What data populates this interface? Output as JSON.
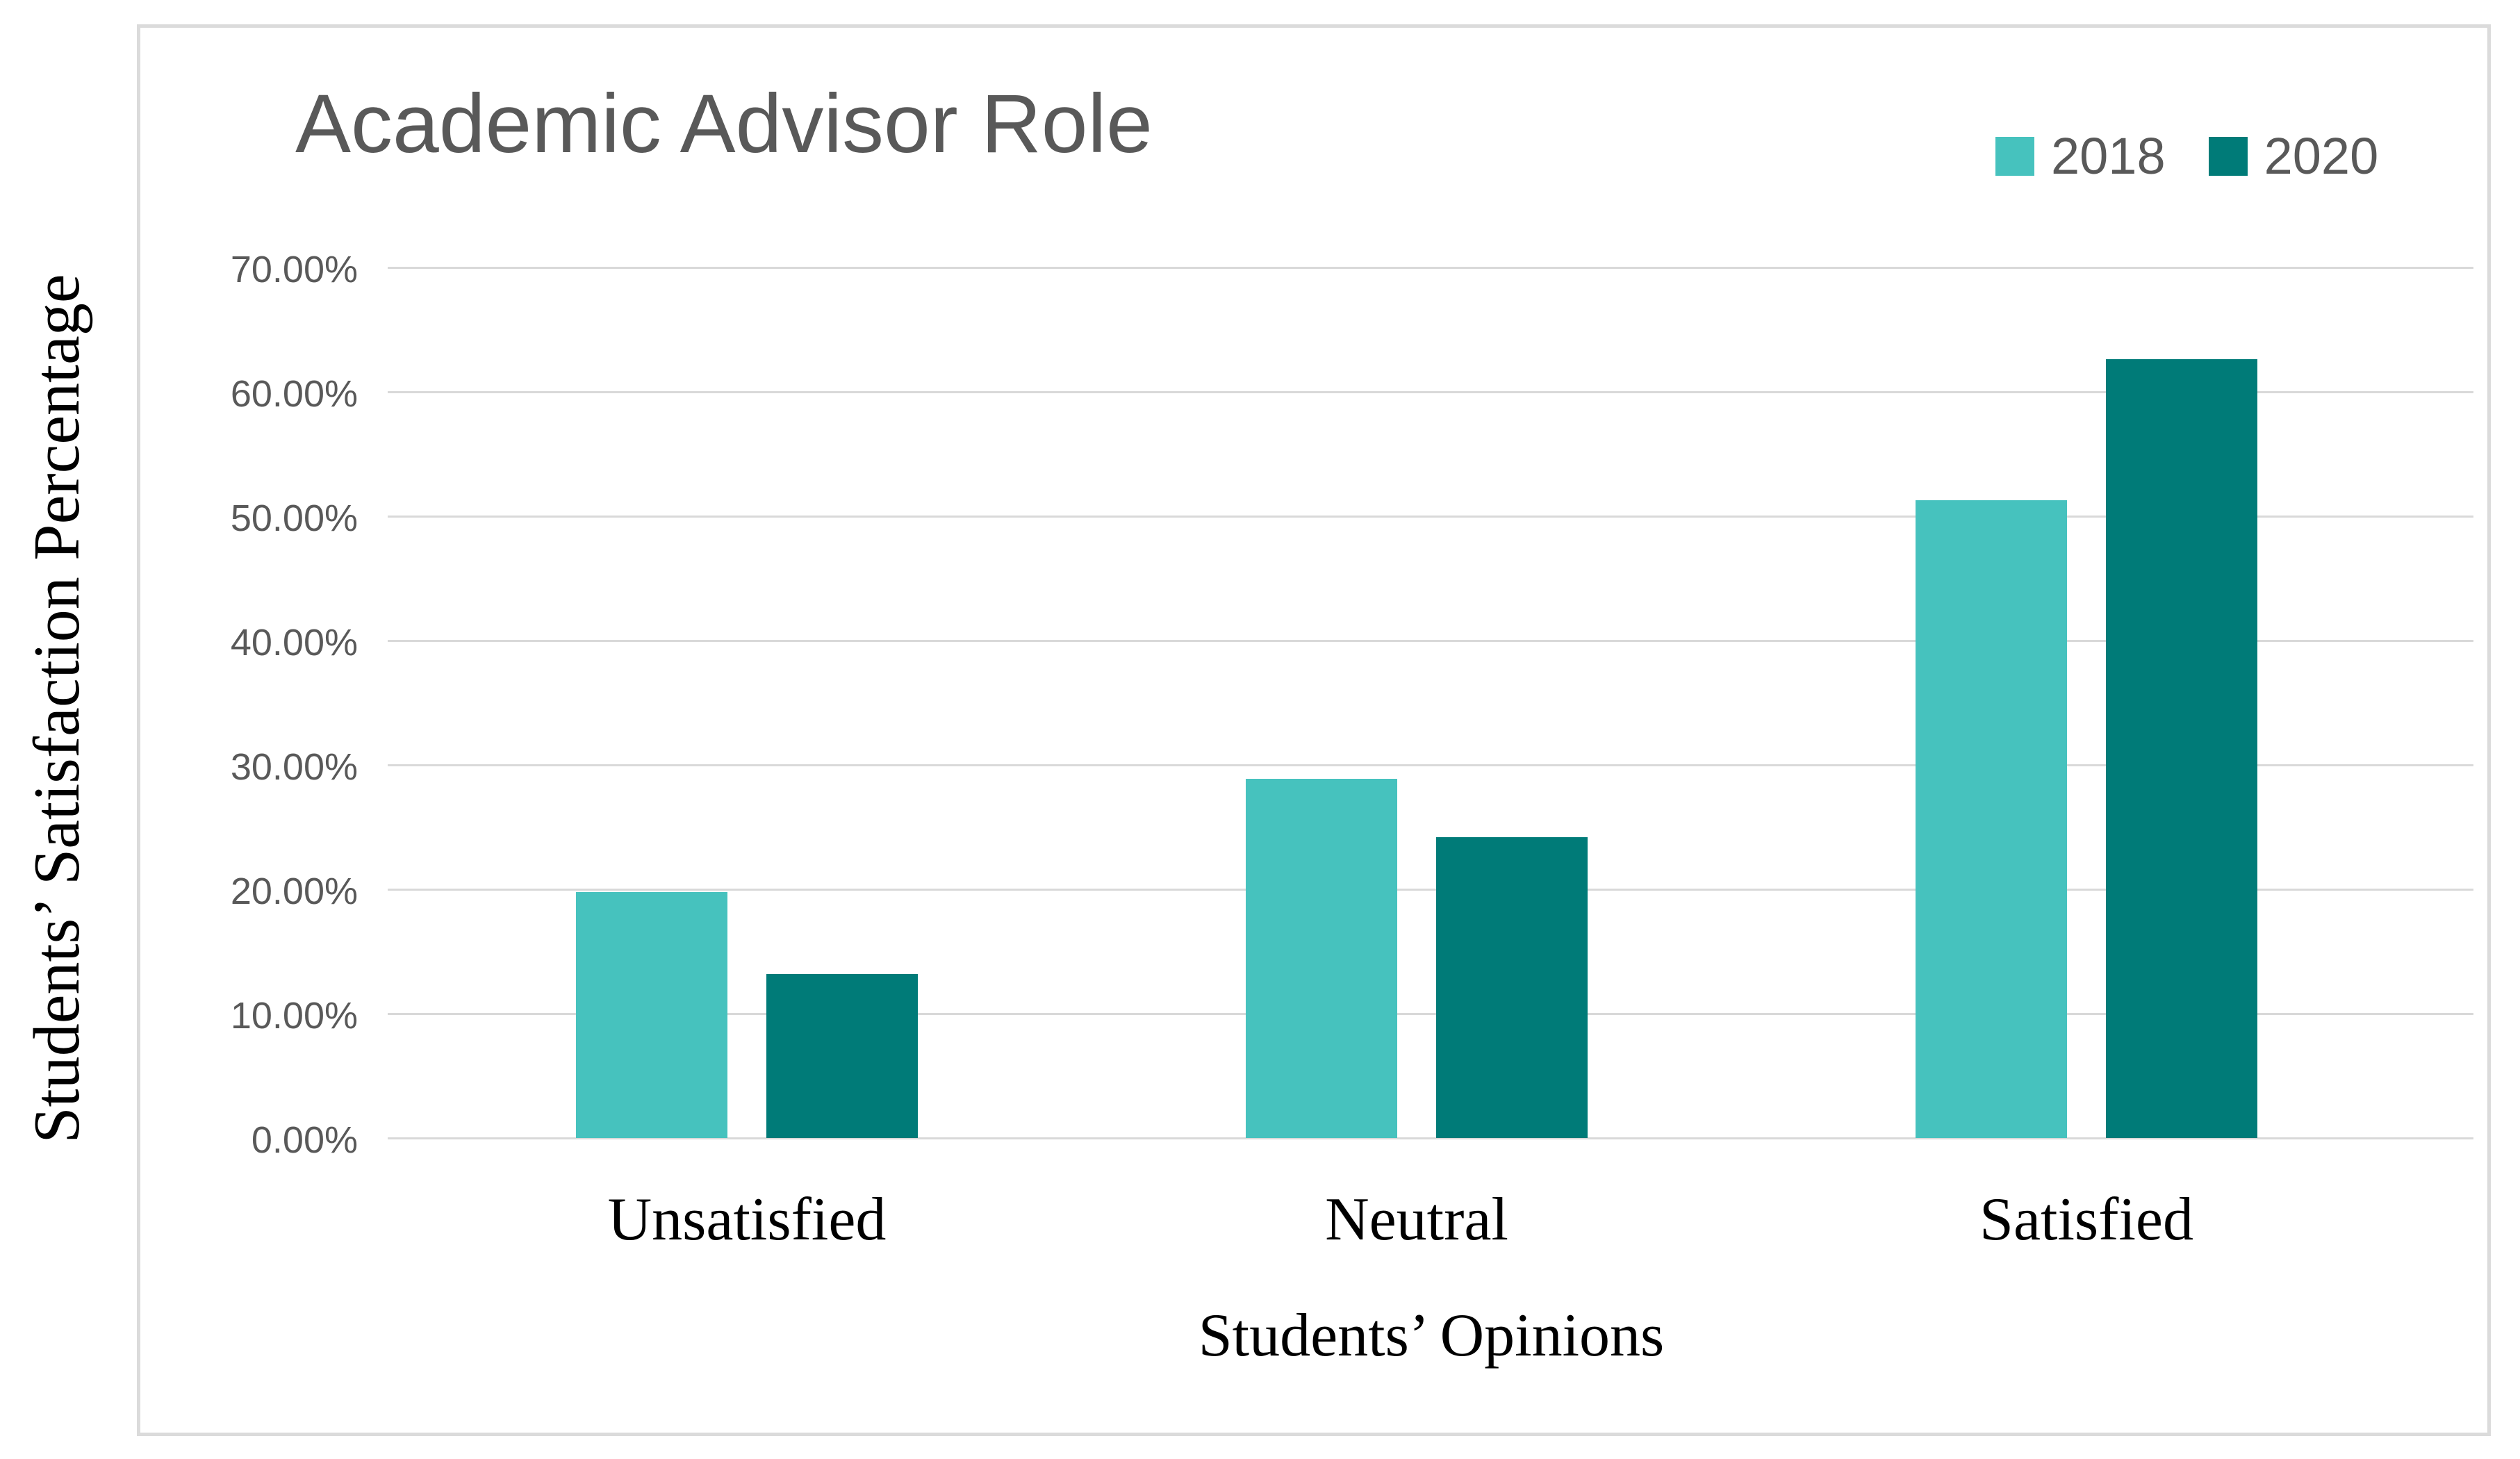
{
  "title": "Academic Advisor Role",
  "legend": [
    {
      "label": "2018",
      "color": "#46C2BE"
    },
    {
      "label": "2020",
      "color": "#007B78"
    }
  ],
  "y_axis": {
    "title": "Students’ Satisfaction Percentage",
    "tick_labels": [
      "0.00%",
      "10.00%",
      "20.00%",
      "30.00%",
      "40.00%",
      "50.00%",
      "60.00%",
      "70.00%"
    ]
  },
  "x_axis": {
    "title": "Students’ Opinions",
    "categories": [
      "Unsatisfied",
      "Neutral",
      "Satisfied"
    ]
  },
  "chart_data": {
    "type": "bar",
    "title": "Academic Advisor Role",
    "xlabel": "Students’ Opinions",
    "ylabel": "Students’ Satisfaction Percentage",
    "categories": [
      "Unsatisfied",
      "Neutral",
      "Satisfied"
    ],
    "series": [
      {
        "name": "2018",
        "color": "#46C2BE",
        "values": [
          19.8,
          28.9,
          51.3
        ]
      },
      {
        "name": "2020",
        "color": "#007B78",
        "values": [
          13.2,
          24.2,
          62.6
        ]
      }
    ],
    "value_unit": "percent",
    "ylim": [
      0,
      70
    ],
    "ytick_step": 10,
    "grid": true,
    "gridline_color": "#D9D9D9",
    "legend_position": "top-right",
    "title_color": "#595959",
    "tick_label_color": "#595959"
  }
}
